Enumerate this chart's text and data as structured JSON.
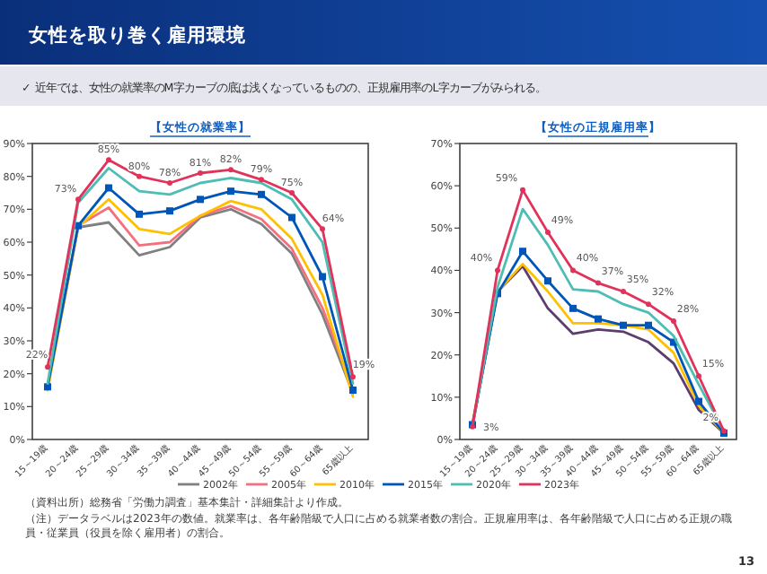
{
  "chart_data": [
    {
      "type": "line",
      "title": "【女性の就業率】",
      "categories": [
        "15～19歳",
        "20～24歳",
        "25～29歳",
        "30～34歳",
        "35～39歳",
        "40～44歳",
        "45～49歳",
        "50～54歳",
        "55～59歳",
        "60～64歳",
        "65歳以上"
      ],
      "ylim": [
        0,
        90
      ],
      "yticks": [
        {
          "value": 0,
          "label": "0%"
        },
        {
          "value": 10,
          "label": "10%"
        },
        {
          "value": 20,
          "label": "20%"
        },
        {
          "value": 30,
          "label": "30%"
        },
        {
          "value": 40,
          "label": "40%"
        },
        {
          "value": 50,
          "label": "50%"
        },
        {
          "value": 60,
          "label": "60%"
        },
        {
          "value": 70,
          "label": "70%"
        },
        {
          "value": 80,
          "label": "80%"
        },
        {
          "value": 90,
          "label": "90%"
        }
      ],
      "legend": "bottom",
      "annotations": [
        "女性を取り巻く雇用環境",
        "✓  近年では、女性の就業率のM字カーブの底は浅くなっているものの、正規雇用率のL字カーブがみられる。"
      ],
      "series": [
        {
          "name": "2002年",
          "color": "#808080",
          "marker": "none",
          "values": [
            16,
            64.5,
            66,
            56,
            58.5,
            67.5,
            70,
            65.5,
            56.5,
            38,
            14
          ]
        },
        {
          "name": "2005年",
          "color": "#f4707f",
          "marker": "none",
          "values": [
            16,
            65,
            70.5,
            59,
            60,
            68,
            71,
            67,
            58,
            40,
            15
          ]
        },
        {
          "name": "2010年",
          "color": "#ffc000",
          "marker": "none",
          "values": [
            15,
            64.5,
            73,
            64,
            62.5,
            68,
            72.5,
            70,
            61,
            44,
            13
          ]
        },
        {
          "name": "2015年",
          "color": "#0055b8",
          "marker": "square",
          "values": [
            16,
            65,
            76.5,
            68.5,
            69.5,
            73,
            75.5,
            74.5,
            67.5,
            49.5,
            15
          ]
        },
        {
          "name": "2020年",
          "color": "#4dbdb5",
          "marker": "none",
          "values": [
            17,
            72,
            82.5,
            75.5,
            74.5,
            78,
            79.5,
            78,
            73,
            60,
            17
          ]
        },
        {
          "name": "2023年",
          "color": "#e0325a",
          "marker": "circle",
          "values": [
            22,
            73,
            85,
            80,
            78,
            81,
            82,
            79,
            75,
            64,
            19
          ],
          "value_labels": [
            "22%",
            "73%",
            "85%",
            "80%",
            "78%",
            "81%",
            "82%",
            "79%",
            "75%",
            "64%",
            "19%"
          ]
        }
      ]
    },
    {
      "type": "line",
      "title": "【女性の正規雇用率】",
      "categories": [
        "15～19歳",
        "20～24歳",
        "25～29歳",
        "30～34歳",
        "35～39歳",
        "40～44歳",
        "45～49歳",
        "50～54歳",
        "55～59歳",
        "60～64歳",
        "65歳以上"
      ],
      "ylim": [
        0,
        70
      ],
      "yticks": [
        {
          "value": 0,
          "label": "0%"
        },
        {
          "value": 10,
          "label": "10%"
        },
        {
          "value": 20,
          "label": "20%"
        },
        {
          "value": 30,
          "label": "30%"
        },
        {
          "value": 40,
          "label": "40%"
        },
        {
          "value": 50,
          "label": "50%"
        },
        {
          "value": 60,
          "label": "60%"
        },
        {
          "value": 70,
          "label": "70%"
        }
      ],
      "annotations": [
        "（資料出所）総務省「労働力調査」基本集計・詳細集計より作成。",
        "（注）データラベルは2023年の数値。就業率は、各年齢階級で人口に占める就業者数の割合。正規雇用率は、各年齢階級で人口に占める正規の職員・従業員（役員を除く雇用者）の割合。",
        "13"
      ],
      "series": [
        {
          "color": "#5c3d6e",
          "marker": "none",
          "values": [
            3,
            35,
            41,
            31,
            25,
            26,
            25.5,
            23,
            18,
            7,
            1.5
          ]
        },
        {
          "color": "#ffc000",
          "marker": "none",
          "values": [
            4,
            35,
            41.5,
            35,
            27.5,
            27.5,
            27,
            26,
            20.5,
            8,
            1.5
          ]
        },
        {
          "color": "#0055b8",
          "marker": "square",
          "values": [
            3.5,
            34.5,
            44.5,
            37.5,
            31,
            28.5,
            27,
            27,
            23,
            9,
            1.5
          ]
        },
        {
          "color": "#4dbdb5",
          "marker": "none",
          "values": [
            3,
            36,
            54.5,
            46,
            35.5,
            35,
            32,
            30,
            24.5,
            13,
            2
          ]
        },
        {
          "color": "#e0325a",
          "marker": "circle",
          "values": [
            3,
            40,
            59,
            49,
            40,
            37,
            35,
            32,
            28,
            15,
            2
          ],
          "value_labels": [
            "3%",
            "40%",
            "59%",
            "49%",
            "40%",
            "37%",
            "35%",
            "32%",
            "28%",
            "15%",
            "2%"
          ]
        }
      ]
    }
  ]
}
